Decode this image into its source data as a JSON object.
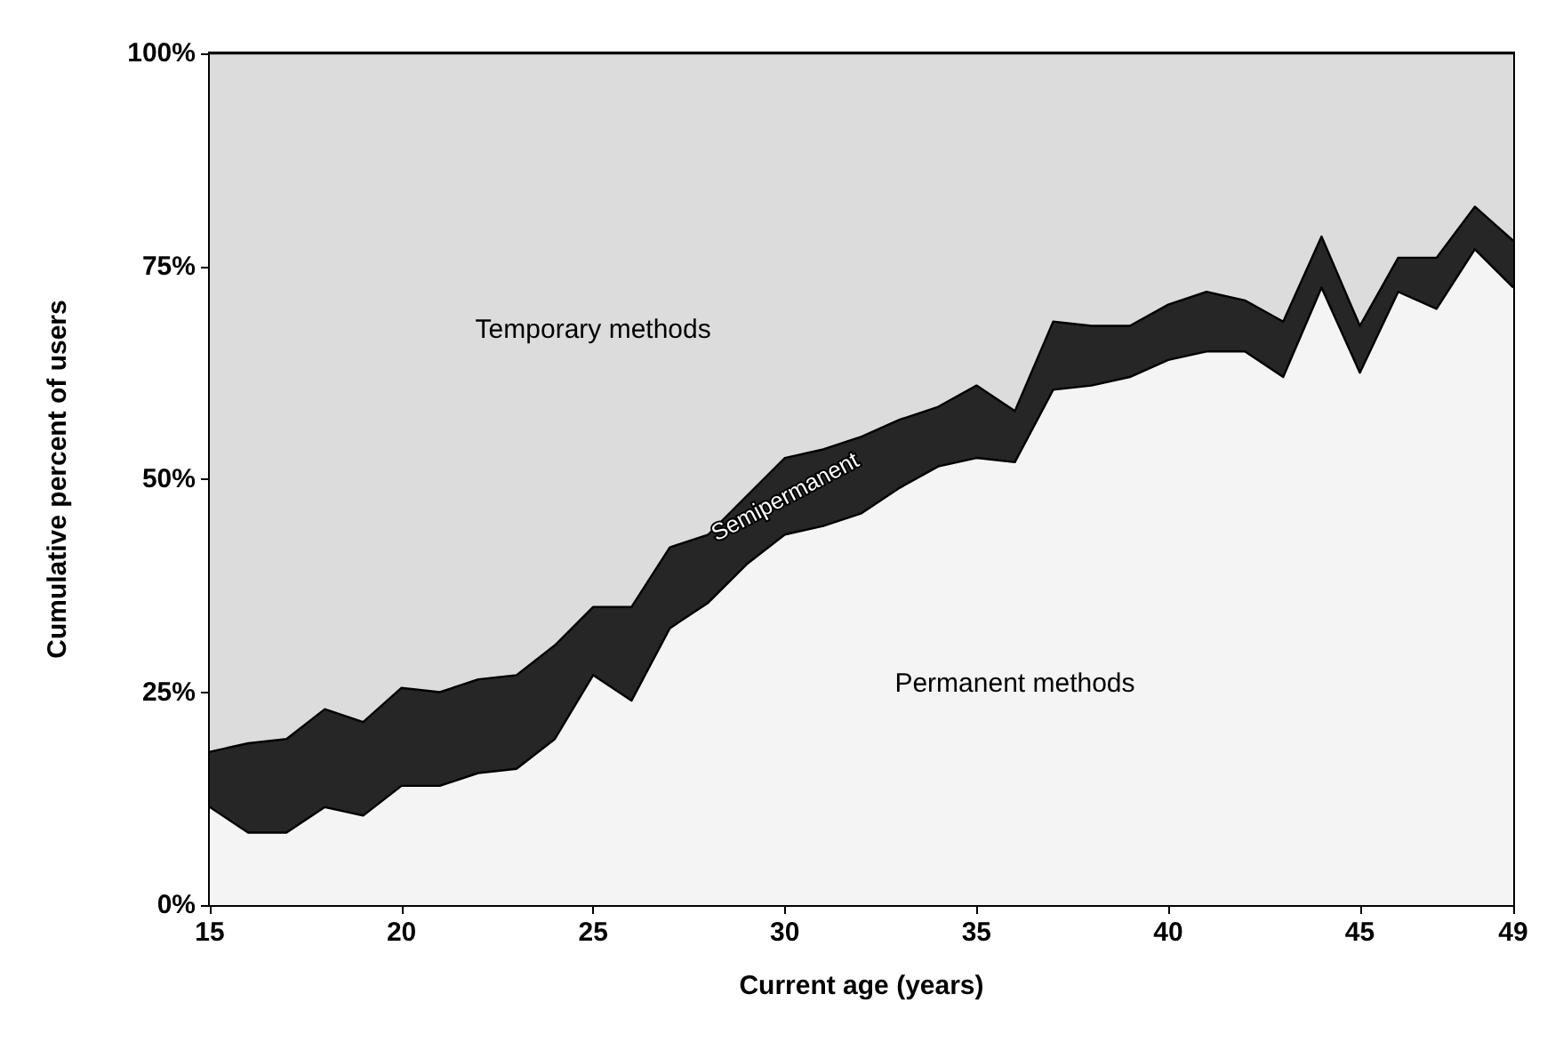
{
  "chart_data": {
    "type": "area",
    "stacked": true,
    "xlabel": "Current age (years)",
    "ylabel": "Cumulative percent of users",
    "x": [
      15,
      16,
      17,
      18,
      19,
      20,
      21,
      22,
      23,
      24,
      25,
      26,
      27,
      28,
      29,
      30,
      31,
      32,
      33,
      34,
      35,
      36,
      37,
      38,
      39,
      40,
      41,
      42,
      43,
      44,
      45,
      46,
      47,
      48,
      49
    ],
    "xlim": [
      15,
      49
    ],
    "xticks": [
      15,
      20,
      25,
      30,
      35,
      40,
      45,
      49
    ],
    "ylim": [
      0,
      100
    ],
    "yticks": [
      {
        "value": 0,
        "label": "0%"
      },
      {
        "value": 25,
        "label": "25%"
      },
      {
        "value": 50,
        "label": "50%"
      },
      {
        "value": 75,
        "label": "75%"
      },
      {
        "value": 100,
        "label": "100%"
      }
    ],
    "series": [
      {
        "name": "Permanent methods",
        "color": "#f4f4f4",
        "values": [
          11.5,
          8.5,
          8.5,
          11.5,
          10.5,
          14,
          14,
          15.5,
          16,
          19.5,
          27,
          24,
          32.5,
          35.5,
          40,
          43.5,
          44.5,
          46,
          49,
          51.5,
          52.5,
          52,
          60.5,
          61,
          62,
          64,
          65,
          65,
          62,
          72.5,
          62.5,
          72,
          70,
          77,
          72.5
        ]
      },
      {
        "name": "Semipermanent",
        "color": "#262626",
        "values": [
          6.5,
          10.5,
          11,
          11.5,
          11,
          11.5,
          11,
          11,
          11,
          11,
          8,
          11,
          9.5,
          8,
          8,
          9,
          9,
          9,
          8,
          7,
          8.5,
          6,
          8,
          7,
          6,
          6.5,
          7,
          6,
          6.5,
          6,
          5.5,
          4,
          6,
          5,
          5.5
        ]
      },
      {
        "name": "Temporary methods",
        "color": "#dcdcdc",
        "values": [
          82,
          81,
          80.5,
          77,
          78.5,
          74.5,
          75,
          73.5,
          73,
          69.5,
          65,
          65,
          58,
          56.5,
          52,
          47.5,
          46.5,
          45,
          43,
          41.5,
          39,
          42,
          31.5,
          32,
          32,
          29.5,
          28,
          29,
          31.5,
          21.5,
          32,
          24,
          24,
          18,
          22
        ]
      }
    ]
  }
}
